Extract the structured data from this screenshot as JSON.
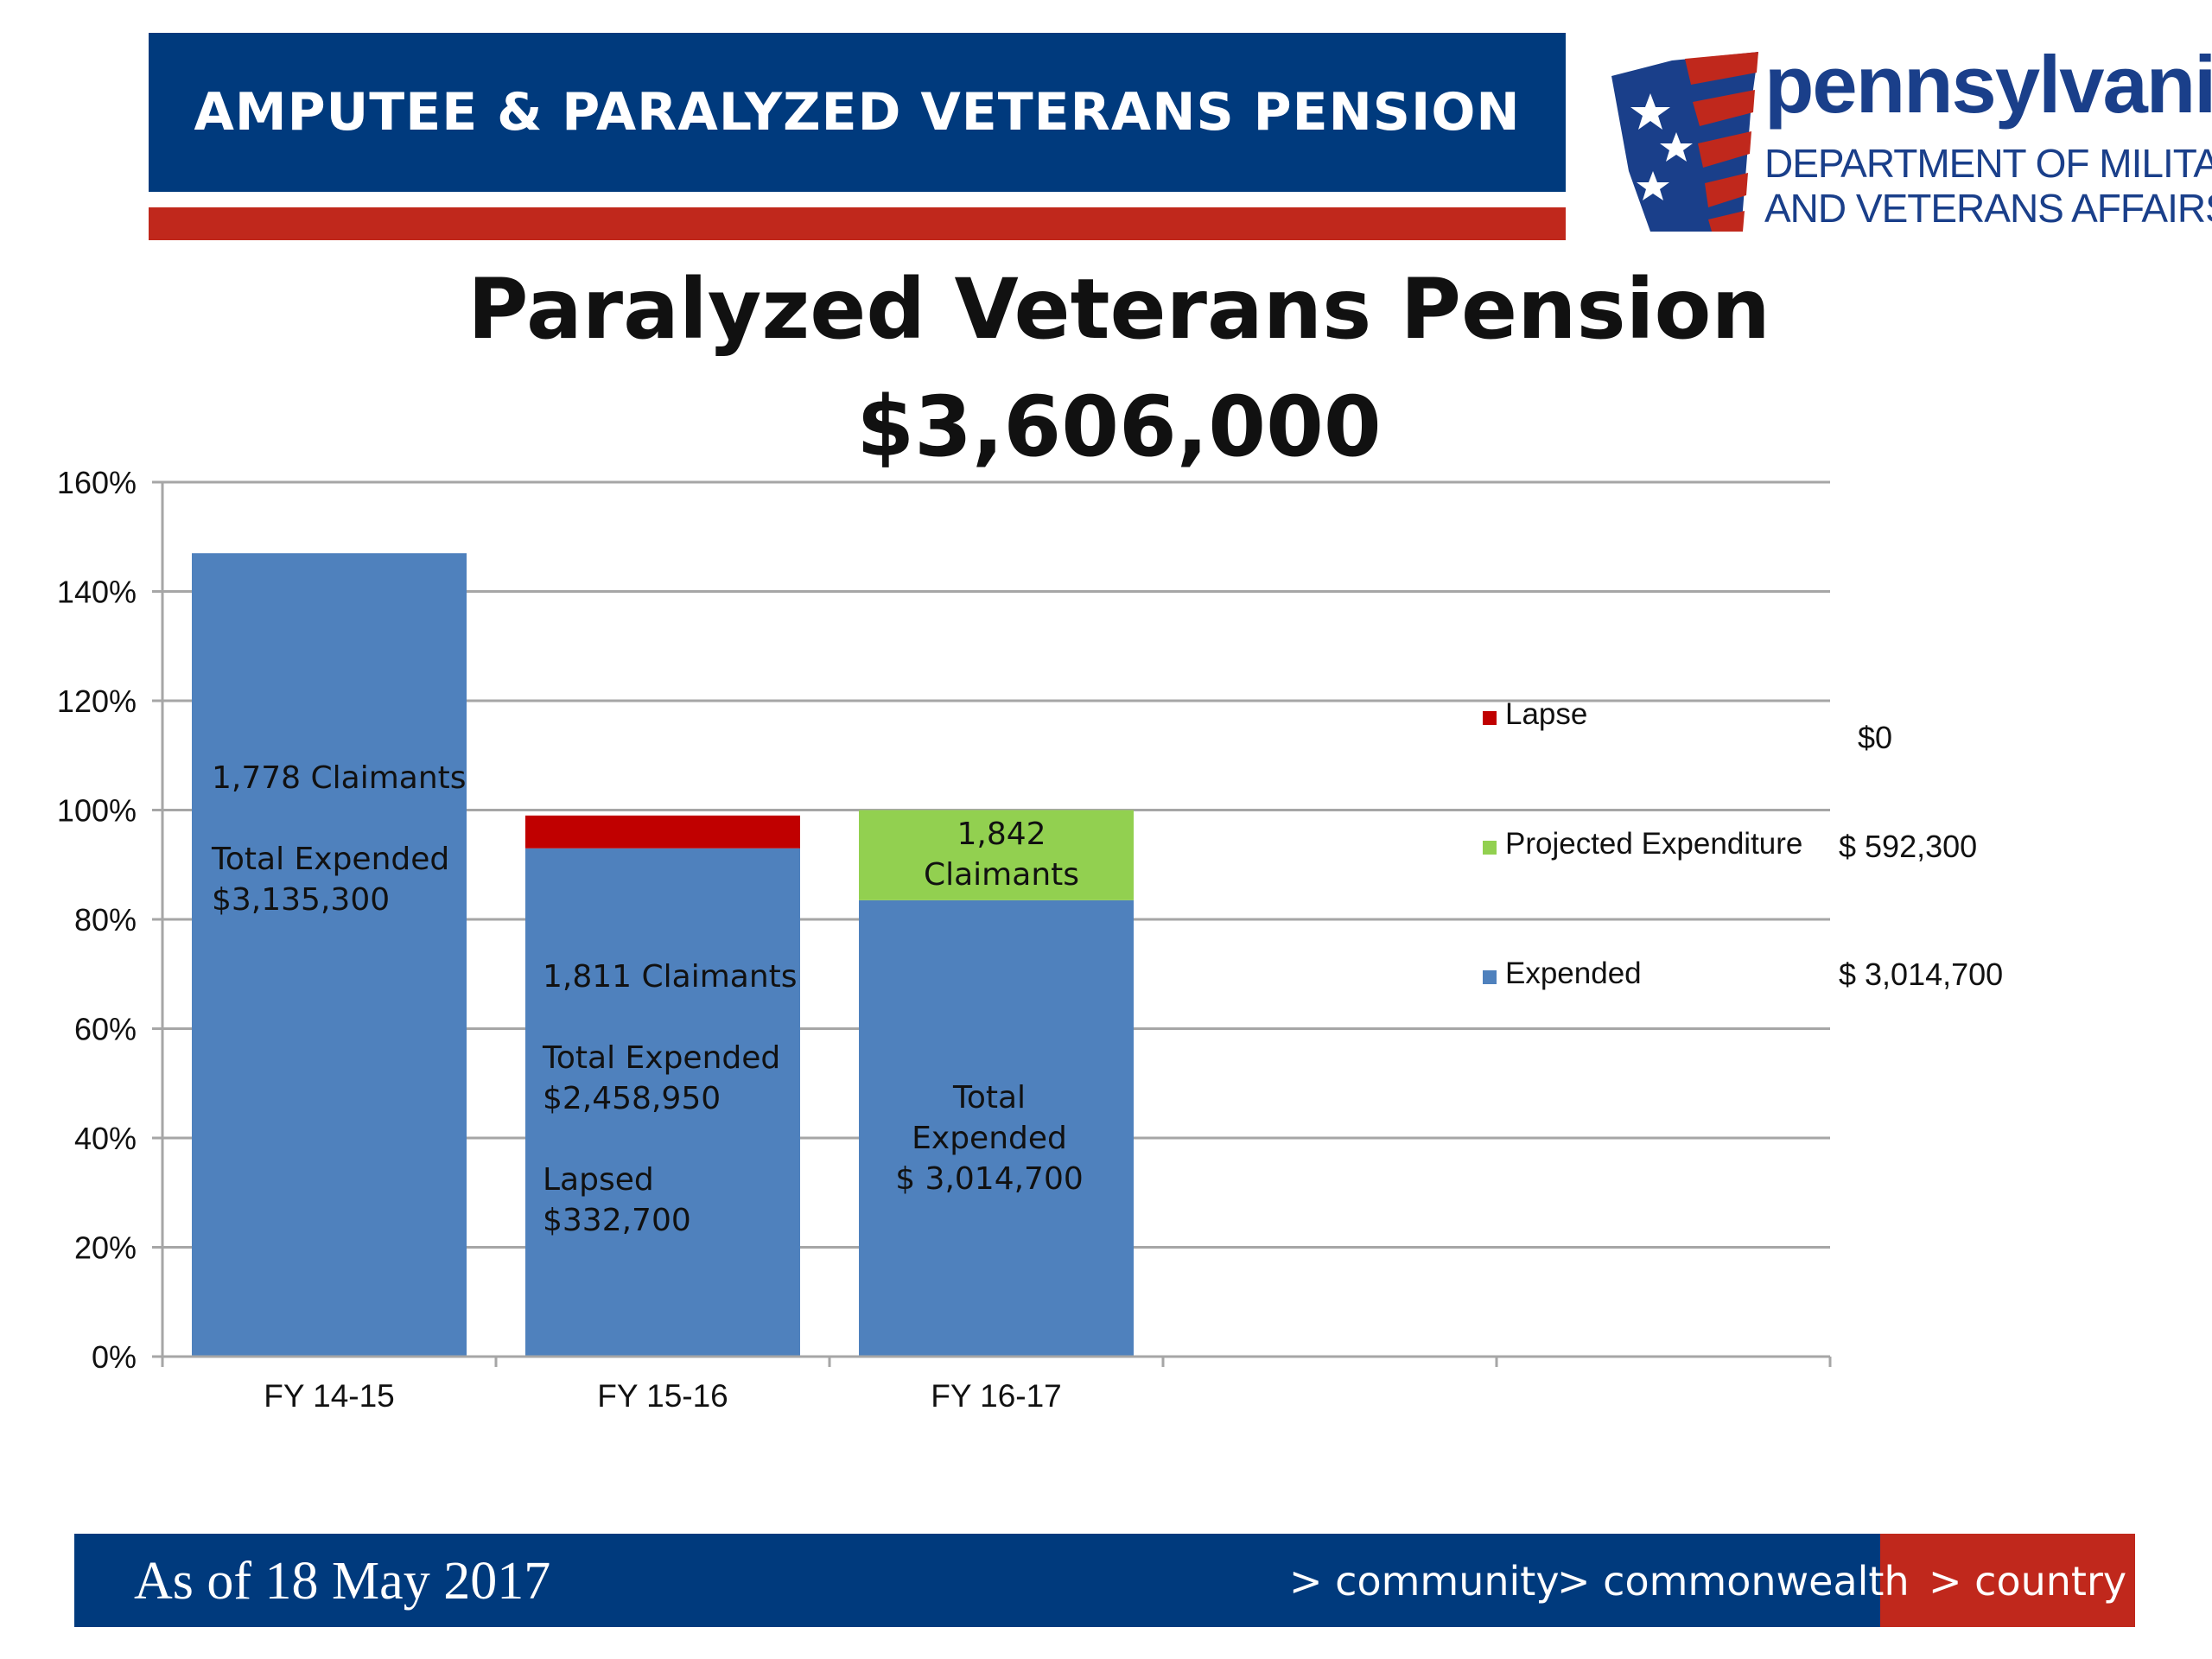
{
  "header": {
    "title": "AMPUTEE & PARALYZED VETERANS PENSION",
    "colors": {
      "blue": "#003a7d",
      "red": "#c0281c"
    }
  },
  "logo": {
    "icon": "pennsylvania-keystone-flag-icon",
    "wordmark": "pennsylvania",
    "line1": "DEPARTMENT OF MILITARY",
    "line2": "AND VETERANS AFFAIRS"
  },
  "chart_data": {
    "type": "bar",
    "stacked": true,
    "title": "Paralyzed Veterans Pension",
    "subtitle": "$3,606,000",
    "categories": [
      "FY 14-15",
      "FY 15-16",
      "FY 16-17",
      "",
      ""
    ],
    "y_ticks": [
      "0%",
      "20%",
      "40%",
      "60%",
      "80%",
      "100%",
      "120%",
      "140%",
      "160%"
    ],
    "ylim": [
      0,
      160
    ],
    "grid": true,
    "series": [
      {
        "name": "Expended",
        "color": "#4f81bd",
        "values": [
          147,
          93,
          83.5,
          0,
          0
        ]
      },
      {
        "name": "Lapse",
        "color": "#c00000",
        "values": [
          0,
          6,
          0,
          0,
          0
        ]
      },
      {
        "name": "Projected Expenditure",
        "color": "#92d050",
        "values": [
          0,
          0,
          16.5,
          0,
          0
        ]
      }
    ],
    "legend": {
      "position": "right",
      "entries": [
        {
          "name": "Lapse",
          "color": "#c00000",
          "amount": "$0"
        },
        {
          "name": "Projected Expenditure",
          "color": "#92d050",
          "amount": "$  592,300"
        },
        {
          "name": "Expended",
          "color": "#4f81bd",
          "amount": "$ 3,014,700"
        }
      ]
    },
    "annotations": {
      "fy1415": [
        "1,778 Claimants",
        "Total Expended",
        "$3,135,300"
      ],
      "fy1516": [
        "1,811 Claimants",
        "Total Expended",
        "$2,458,950",
        "Lapsed",
        "$332,700"
      ],
      "fy1617_green": [
        "1,842",
        "Claimants"
      ],
      "fy1617_blue": [
        "Total",
        "Expended",
        "$ 3,014,700"
      ]
    }
  },
  "footer": {
    "date": "As of 18 May 2017",
    "links": [
      "> community",
      "> commonwealth",
      "> country"
    ]
  }
}
